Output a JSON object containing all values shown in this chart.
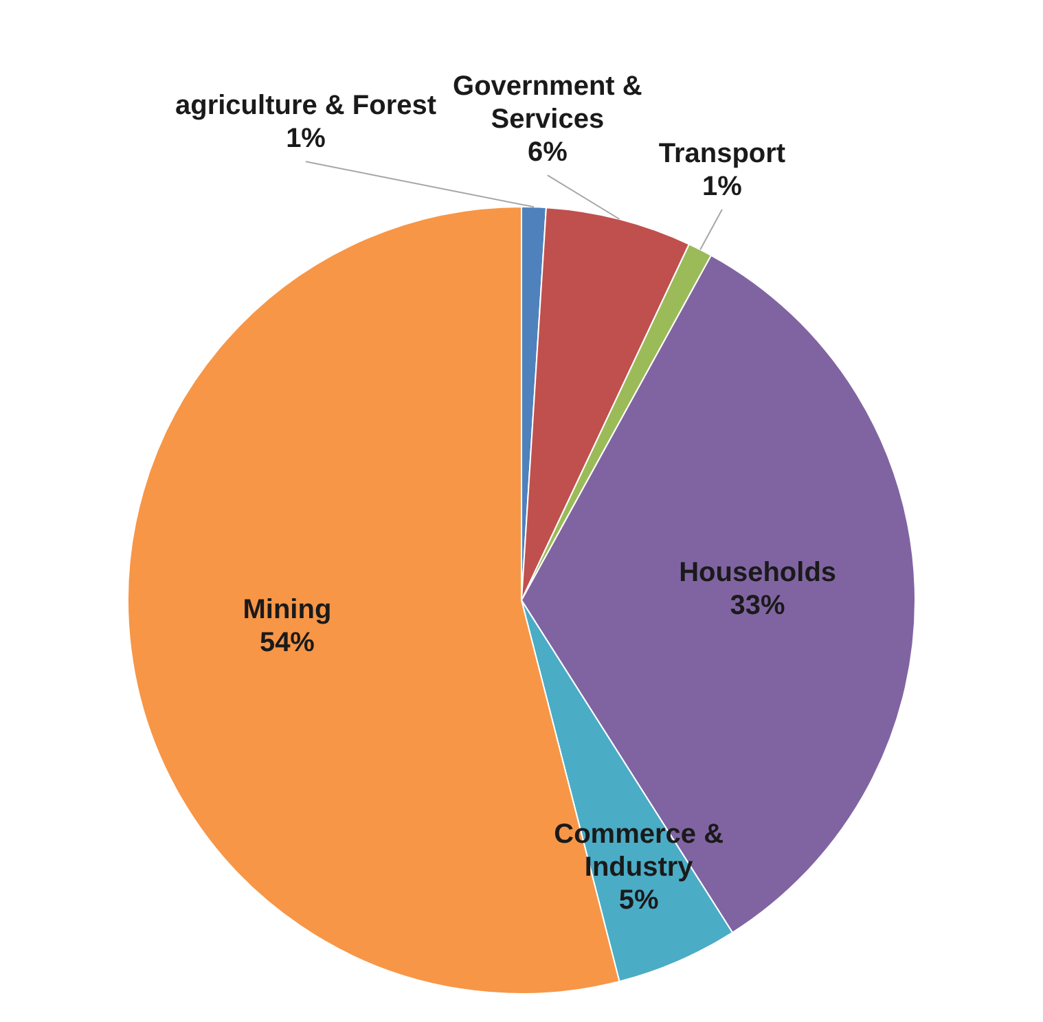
{
  "chart_data": {
    "type": "pie",
    "categories": [
      "agriculture & Forest",
      "Government & Services",
      "Transport",
      "Households",
      "Commerce & Industry",
      "Mining"
    ],
    "values": [
      1,
      6,
      1,
      33,
      5,
      54
    ],
    "value_labels": [
      "1%",
      "6%",
      "1%",
      "33%",
      "5%",
      "54%"
    ],
    "colors": [
      "#4f81bd",
      "#c0504d",
      "#9bbb59",
      "#8064a2",
      "#4bacc6",
      "#f79646"
    ],
    "legend": false
  }
}
